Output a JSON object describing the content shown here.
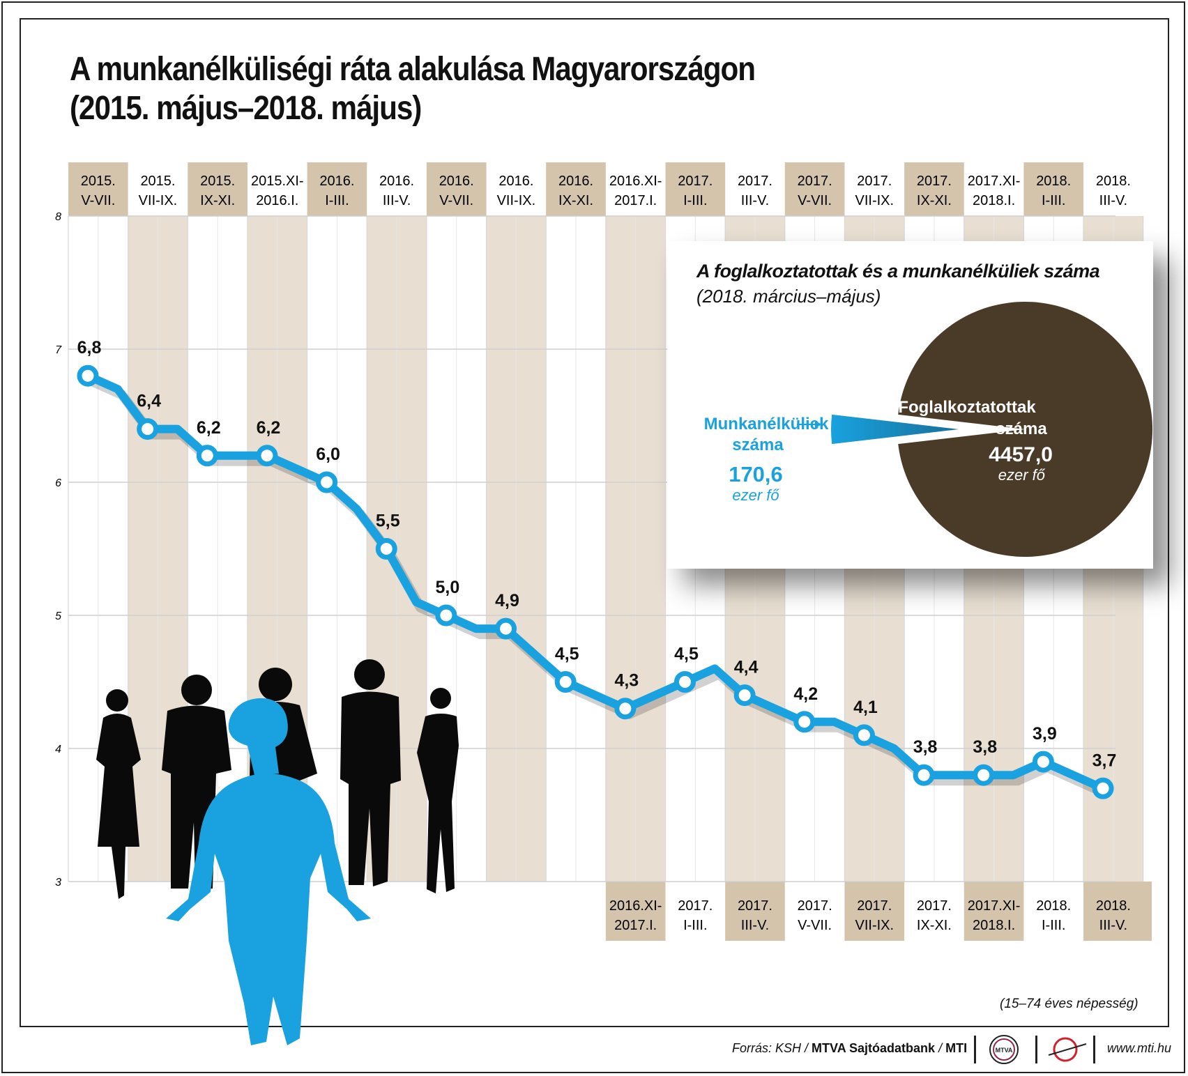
{
  "title": {
    "line1": "A munkanélküliségi ráta alakulása Magyarországon",
    "line2": "(2015. május–2018. május)"
  },
  "chart_data": {
    "type": "line",
    "categories": [
      [
        "2015.",
        "V-VII."
      ],
      [
        "2015.",
        "VII-IX."
      ],
      [
        "2015.",
        "IX-XI."
      ],
      [
        "2015.XI-",
        "2016.I."
      ],
      [
        "2016.",
        "I-III."
      ],
      [
        "2016.",
        "III-V."
      ],
      [
        "2016.",
        "V-VII."
      ],
      [
        "2016.",
        "VII-IX."
      ],
      [
        "2016.",
        "IX-XI."
      ],
      [
        "2016.XI-",
        "2017.I."
      ],
      [
        "2017.",
        "I-III."
      ],
      [
        "2017.",
        "III-V."
      ],
      [
        "2017.",
        "V-VII."
      ],
      [
        "2017.",
        "VII-IX."
      ],
      [
        "2017.",
        "IX-XI."
      ],
      [
        "2017.XI-",
        "2018.I."
      ],
      [
        "2018.",
        "I-III."
      ],
      [
        "2018.",
        "III-V."
      ]
    ],
    "bottom_categories_from_index": 9,
    "values": [
      6.8,
      6.4,
      6.2,
      6.2,
      6.0,
      5.5,
      5.0,
      4.9,
      4.5,
      4.3,
      4.5,
      4.4,
      4.2,
      4.1,
      3.8,
      3.8,
      3.9,
      3.7
    ],
    "value_labels": [
      "6,8",
      "6,4",
      "6,2",
      "6,2",
      "6,0",
      "5,5",
      "5,0",
      "4,9",
      "4,5",
      "4,3",
      "4,5",
      "4,4",
      "4,2",
      "4,1",
      "3,8",
      "3,8",
      "3,9",
      "3,7"
    ],
    "monthly_values": [
      6.8,
      6.7,
      6.4,
      6.4,
      6.2,
      6.2,
      6.2,
      6.1,
      6.0,
      5.8,
      5.5,
      5.1,
      5.0,
      4.9,
      4.9,
      4.7,
      4.5,
      4.4,
      4.3,
      4.4,
      4.5,
      4.6,
      4.4,
      4.3,
      4.2,
      4.2,
      4.1,
      4.0,
      3.8,
      3.8,
      3.8,
      3.8,
      3.9,
      3.8,
      3.7
    ],
    "yticks": [
      "3",
      "4",
      "5",
      "6",
      "7",
      "8"
    ],
    "ylim": [
      3,
      8
    ],
    "line_color": "#19a2df",
    "band_color": "#e8dfd2",
    "header_color": "#d4c4ac",
    "note": "(15–74 éves népesség)"
  },
  "pie": {
    "title": "A foglalkoztatottak és a munkanélküliek száma",
    "subtitle": "(2018. március–május)",
    "unemployed": {
      "label_1": "Munkanélküliek",
      "label_2": "száma",
      "value_text": "170,6",
      "unit": "ezer fő",
      "value": 170.6,
      "color": "#19a2df"
    },
    "employed": {
      "label_1": "Foglalkoztatottak",
      "label_2": "száma",
      "value_text": "4457,0",
      "unit": "ezer fő",
      "value": 4457.0,
      "color": "#4a3a28"
    }
  },
  "footer": {
    "source_prefix": "Forrás: KSH / ",
    "source_bold": "MTVA Sajtóadatbank",
    "source_sep": " / ",
    "source_end": "MTI",
    "logo_text": "MTVA",
    "url": "www.mti.hu"
  }
}
